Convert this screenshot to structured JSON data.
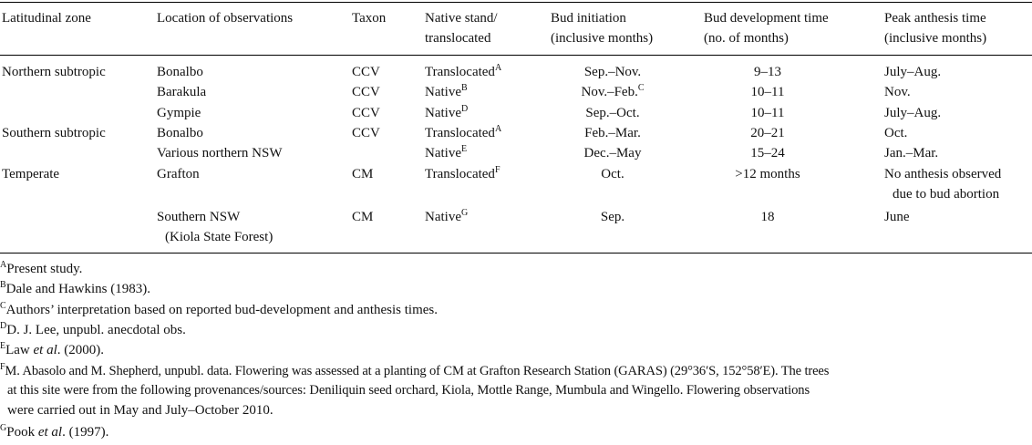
{
  "headers": {
    "zone": "Latitudinal zone",
    "location": "Location of observations",
    "taxon": "Taxon",
    "native_1": "Native stand/",
    "native_2": "translocated",
    "bud_init_1": "Bud initiation",
    "bud_init_2": "(inclusive months)",
    "bud_dev_1": "Bud development time",
    "bud_dev_2": "(no. of months)",
    "peak_1": "Peak anthesis time",
    "peak_2": "(inclusive months)"
  },
  "rows": [
    {
      "zone": "Northern subtropic",
      "location": "Bonalbo",
      "taxon": "CCV",
      "native": "Translocated",
      "native_sup": "A",
      "init": "Sep.–Nov.",
      "init_sup": "",
      "dev": "9–13",
      "peak": "July–Aug."
    },
    {
      "zone": "",
      "location": "Barakula",
      "taxon": "CCV",
      "native": "Native",
      "native_sup": "B",
      "init": "Nov.–Feb.",
      "init_sup": "C",
      "dev": "10–11",
      "peak": "Nov."
    },
    {
      "zone": "",
      "location": "Gympie",
      "taxon": "CCV",
      "native": "Native",
      "native_sup": "D",
      "init": "Sep.–Oct.",
      "init_sup": "",
      "dev": "10–11",
      "peak": "July–Aug."
    },
    {
      "zone": "Southern subtropic",
      "location": "Bonalbo",
      "taxon": "CCV",
      "native": "Translocated",
      "native_sup": "A",
      "init": "Feb.–Mar.",
      "init_sup": "",
      "dev": "20–21",
      "peak": "Oct."
    },
    {
      "zone": "",
      "location": "Various northern NSW",
      "taxon": "",
      "native": "Native",
      "native_sup": "E",
      "init": "Dec.–May",
      "init_sup": "",
      "dev": "15–24",
      "peak": "Jan.–Mar."
    },
    {
      "zone": "Temperate",
      "location": "Grafton",
      "taxon": "CM",
      "native": "Translocated",
      "native_sup": "F",
      "init": "Oct.",
      "init_sup": "",
      "dev": ">12 months",
      "peak": "No anthesis observed",
      "peak_2": "due to bud abortion"
    },
    {
      "zone": "",
      "location": "Southern NSW",
      "location_2": "(Kiola State Forest)",
      "taxon": "CM",
      "native": "Native",
      "native_sup": "G",
      "init": "Sep.",
      "init_sup": "",
      "dev": "18",
      "peak": "June"
    }
  ],
  "footnotes": {
    "A": {
      "mark": "A",
      "text": "Present study."
    },
    "B": {
      "mark": "B",
      "text": "Dale and Hawkins (1983)."
    },
    "C": {
      "mark": "C",
      "text": "Authors’ interpretation based on reported bud-development and anthesis times."
    },
    "D": {
      "mark": "D",
      "text": "D. J. Lee, unpubl. anecdotal obs."
    },
    "E": {
      "mark": "E",
      "pre": "Law ",
      "em": "et al",
      "post": ". (2000)."
    },
    "F": {
      "mark": "F",
      "line1": "M. Abasolo and M. Shepherd, unpubl. data. Flowering was assessed at a planting of CM at Grafton Research Station (GARAS) (29°36′S, 152°58′E). The trees",
      "line2": "at this site were from the following provenances/sources: Deniliquin seed orchard, Kiola, Mottle Range, Mumbula and Wingello. Flowering observations",
      "line3": "were carried out in May and July–October 2010."
    },
    "G": {
      "mark": "G",
      "pre": "Pook ",
      "em": "et al",
      "post": ". (1997)."
    }
  }
}
